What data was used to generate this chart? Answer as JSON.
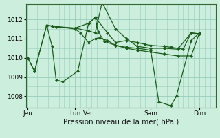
{
  "xlabel": "Pression niveau de la mer( hPa )",
  "bg_color": "#cceedd",
  "grid_color": "#99ccbb",
  "line_color": "#1a5c1a",
  "xlim": [
    0,
    7.0
  ],
  "ylim": [
    1007.4,
    1012.8
  ],
  "yticks": [
    1008,
    1009,
    1010,
    1011,
    1012
  ],
  "xtick_positions": [
    0.05,
    1.8,
    2.3,
    4.6,
    6.4
  ],
  "xtick_labels": [
    "Jeu",
    "Lun",
    "Ven",
    "Sam",
    "Dim"
  ],
  "lines": [
    {
      "x": [
        0.05,
        0.3,
        0.75,
        0.95,
        1.1,
        1.35,
        1.9,
        2.3,
        2.55,
        2.65,
        2.9,
        3.3,
        3.7,
        4.1,
        4.6,
        4.9,
        5.35,
        5.55,
        6.1,
        6.4
      ],
      "y": [
        1010.0,
        1009.3,
        1011.7,
        1010.6,
        1008.85,
        1008.75,
        1009.3,
        1011.8,
        1012.1,
        1011.35,
        1010.85,
        1010.65,
        1010.55,
        1010.5,
        1010.4,
        1007.7,
        1007.5,
        1008.0,
        1010.9,
        1011.3
      ]
    },
    {
      "x": [
        0.75,
        0.95,
        1.8,
        2.3,
        2.55,
        2.8,
        3.3,
        3.7,
        4.1,
        4.6,
        5.1,
        5.6,
        6.1,
        6.4
      ],
      "y": [
        1011.7,
        1011.65,
        1011.55,
        1011.4,
        1011.3,
        1012.9,
        1011.5,
        1011.0,
        1010.6,
        1010.5,
        1010.5,
        1010.45,
        1011.3,
        1011.25
      ]
    },
    {
      "x": [
        0.75,
        0.95,
        1.1,
        1.8,
        2.3,
        2.55,
        3.0,
        3.3,
        3.7,
        4.1,
        4.4,
        4.6,
        5.1,
        5.35,
        5.6,
        5.8,
        6.1,
        6.4
      ],
      "y": [
        1011.7,
        1011.65,
        1011.6,
        1011.55,
        1011.8,
        1012.1,
        1011.3,
        1010.8,
        1010.9,
        1010.8,
        1010.7,
        1010.65,
        1010.6,
        1010.55,
        1010.5,
        1010.45,
        1011.3,
        1011.25
      ]
    },
    {
      "x": [
        0.05,
        0.3,
        0.75,
        1.8,
        2.0,
        2.3,
        2.55,
        2.7,
        3.0,
        3.3,
        3.7,
        4.1,
        4.6,
        5.1,
        5.6,
        6.1,
        6.4
      ],
      "y": [
        1010.0,
        1009.3,
        1011.7,
        1011.5,
        1011.3,
        1010.8,
        1011.0,
        1011.05,
        1010.9,
        1010.65,
        1010.5,
        1010.4,
        1010.3,
        1010.2,
        1010.1,
        1010.1,
        1011.3
      ]
    }
  ],
  "marker": "D",
  "markersize": 2.0,
  "linewidth": 0.9,
  "xlabel_fontsize": 7.5,
  "tick_fontsize": 6.5
}
